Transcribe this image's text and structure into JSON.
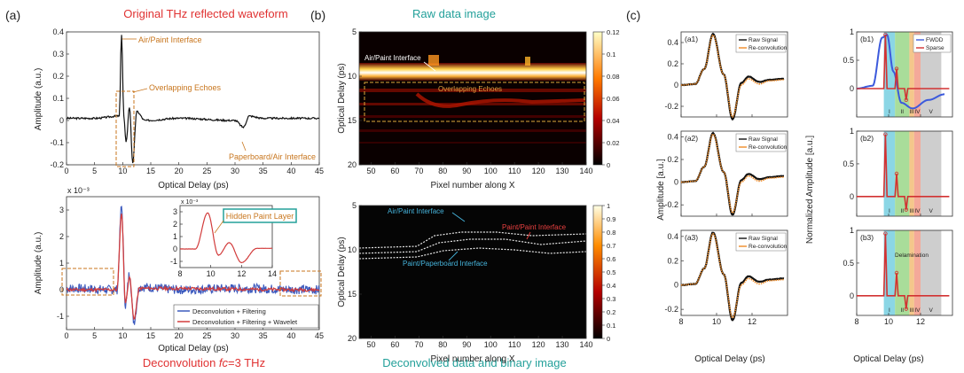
{
  "letters": {
    "a": "(a)",
    "b": "(b)",
    "c": "(c)"
  },
  "heads": {
    "a_top": "Original THz reflected waveform",
    "a_bottom_pre": "Deconvolution ",
    "a_bottom_fc": "fc",
    "a_bottom_post": "=3 THz",
    "b_top": "Raw data image",
    "b_bottom": "Deconvolved data and binary image"
  },
  "colors": {
    "red": "#e03232",
    "teal": "#23a09a",
    "orange": "#c8761e",
    "blue": "#3c5abe",
    "deconv_red": "#d23c3c",
    "raw_black": "#111111",
    "recon_orange": "#f08c28",
    "fwdd_blue": "#3c5adc"
  },
  "chart_data": [
    {
      "id": "a-top",
      "type": "line",
      "xlabel": "Optical Delay (ps)",
      "ylabel": "Amplitude (a.u.)",
      "xlim": [
        0,
        45
      ],
      "ylim": [
        -0.2,
        0.4
      ],
      "xticks": [
        0,
        5,
        10,
        15,
        20,
        25,
        30,
        35,
        40,
        45
      ],
      "yticks": [
        -0.2,
        -0.1,
        0,
        0.1,
        0.2,
        0.3,
        0.4
      ],
      "grid": false,
      "annotations": [
        "Air/Paint Interface",
        "Overlapping Echoes",
        "Paperboard/Air Interface"
      ],
      "series": [
        {
          "points": [
            [
              0,
              0.01
            ],
            [
              5,
              0.01
            ],
            [
              9.4,
              0.02
            ],
            [
              9.8,
              0.39
            ],
            [
              10.2,
              0.02
            ],
            [
              10.6,
              -0.1
            ],
            [
              11.2,
              0.06
            ],
            [
              11.8,
              -0.19
            ],
            [
              12.5,
              0.04
            ],
            [
              14,
              0.0
            ],
            [
              20,
              0.01
            ],
            [
              30,
              0.0
            ],
            [
              31.5,
              -0.03
            ],
            [
              32.5,
              0.02
            ],
            [
              35,
              0.01
            ],
            [
              45,
              0.01
            ]
          ]
        }
      ]
    },
    {
      "id": "a-bottom",
      "type": "line",
      "xlabel": "Optical Delay (ps)",
      "ylabel": "Amplitude (a.u.)",
      "xlim": [
        0,
        45
      ],
      "ylim": [
        -1.5,
        3.5
      ],
      "xticks": [
        0,
        5,
        10,
        15,
        20,
        25,
        30,
        35,
        40,
        45
      ],
      "yticks": [
        -1,
        0,
        1,
        2,
        3
      ],
      "exponent": "x 10⁻³",
      "annotations": [
        "Hidden Paint Layer"
      ],
      "legend": [
        "Deconvolution + Filtering",
        "Deconvolution + Filtering + Wavelet"
      ],
      "legend_placement": "bottom-right",
      "series": [
        {
          "name": "Deconvolution + Filtering",
          "points": [
            [
              0,
              0.05
            ],
            [
              9,
              0.0
            ],
            [
              9.8,
              3.1
            ],
            [
              10.5,
              -0.6
            ],
            [
              11.2,
              0.6
            ],
            [
              12,
              -1.2
            ],
            [
              13,
              0.1
            ],
            [
              20,
              0.0
            ],
            [
              30,
              0.05
            ],
            [
              45,
              0.0
            ]
          ]
        },
        {
          "name": "Deconvolution + Filtering + Wavelet",
          "points": [
            [
              0,
              0.0
            ],
            [
              9,
              0.0
            ],
            [
              9.8,
              2.9
            ],
            [
              10.5,
              -0.5
            ],
            [
              11.2,
              0.5
            ],
            [
              12,
              -1.1
            ],
            [
              13,
              0.05
            ],
            [
              45,
              0.0
            ]
          ]
        }
      ],
      "inset": {
        "xlim": [
          8,
          14
        ],
        "xticks": [
          8,
          10,
          12,
          14
        ],
        "yticks": [
          -1,
          0,
          1,
          2,
          3
        ],
        "exponent": "x 10⁻³"
      }
    },
    {
      "id": "b-top",
      "type": "heatmap",
      "xlabel": "Pixel number along X",
      "ylabel": "Optical Delay (ps)",
      "xlim": [
        45,
        140
      ],
      "ylim": [
        20,
        5
      ],
      "xticks": [
        50,
        60,
        70,
        80,
        90,
        100,
        110,
        120,
        130,
        140
      ],
      "yticks": [
        5,
        10,
        15,
        20
      ],
      "colorbar": [
        0,
        0.02,
        0.04,
        0.06,
        0.08,
        0.1,
        0.12
      ],
      "annotations": [
        "Air/Paint Interface",
        "Overlapping Echoes"
      ]
    },
    {
      "id": "b-bottom",
      "type": "heatmap",
      "xlabel": "Pixel number along X",
      "ylabel": "Optical Delay (ps)",
      "xlim": [
        45,
        140
      ],
      "ylim": [
        20,
        5
      ],
      "xticks": [
        50,
        60,
        70,
        80,
        90,
        100,
        110,
        120,
        130,
        140
      ],
      "yticks": [
        5,
        10,
        15,
        20
      ],
      "colorbar": [
        0,
        0.1,
        0.2,
        0.3,
        0.4,
        0.5,
        0.6,
        0.7,
        0.8,
        0.9,
        1
      ],
      "annotations": [
        "Air/Paint Interface",
        "Paint/Paint Interface",
        "Paint/Paperboard Interface"
      ]
    },
    {
      "id": "c-left",
      "type": "line",
      "xlabel": "Optical Delay (ps)",
      "ylabel": "Amplitude [a.u.]",
      "xlim": [
        8,
        14
      ],
      "xticks": [
        8,
        10,
        12
      ],
      "panels": [
        {
          "label": "(a1)",
          "ylim": [
            -0.3,
            0.5
          ],
          "yticks": [
            -0.2,
            0,
            0.2,
            0.4
          ]
        },
        {
          "label": "(a2)",
          "ylim": [
            -0.3,
            0.45
          ],
          "yticks": [
            -0.2,
            0,
            0.2,
            0.4
          ]
        },
        {
          "label": "(a3)",
          "ylim": [
            -0.25,
            0.45
          ],
          "yticks": [
            -0.2,
            0,
            0.2,
            0.4
          ]
        }
      ],
      "legend": [
        "Raw Signal",
        "Re-convolution"
      ],
      "legend_placement": "top-right",
      "series": [
        {
          "name": "Raw Signal",
          "points": [
            [
              8,
              0.0
            ],
            [
              8.8,
              0.01
            ],
            [
              9.3,
              0.15
            ],
            [
              9.8,
              0.48
            ],
            [
              10.4,
              0.1
            ],
            [
              10.9,
              -0.32
            ],
            [
              11.4,
              0.02
            ],
            [
              11.8,
              0.08
            ],
            [
              12.4,
              0.03
            ],
            [
              13,
              0.05
            ],
            [
              13.8,
              0.06
            ]
          ]
        },
        {
          "name": "Re-convolution",
          "points": [
            [
              8,
              0.0
            ],
            [
              8.8,
              0.01
            ],
            [
              9.3,
              0.15
            ],
            [
              9.8,
              0.47
            ],
            [
              10.4,
              0.1
            ],
            [
              10.9,
              -0.3
            ],
            [
              11.4,
              0.0
            ],
            [
              11.8,
              0.06
            ],
            [
              12.4,
              0.01
            ],
            [
              13,
              0.04
            ],
            [
              13.8,
              0.05
            ]
          ]
        }
      ]
    },
    {
      "id": "c-right",
      "type": "line",
      "xlabel": "Optical Delay (ps)",
      "ylabel": "Normalized Amplitude [a.u.]",
      "xlim": [
        8,
        14
      ],
      "xticks": [
        8,
        10,
        12
      ],
      "panels": [
        {
          "label": "(b1)",
          "ylim": [
            -0.5,
            1
          ],
          "yticks": [
            0,
            0.5,
            1
          ]
        },
        {
          "label": "(b2)",
          "ylim": [
            -0.3,
            1
          ],
          "yticks": [
            0,
            0.5,
            1
          ]
        },
        {
          "label": "(b3)",
          "ylim": [
            -0.3,
            1
          ],
          "yticks": [
            0,
            0.5,
            1
          ]
        }
      ],
      "regions": [
        "I",
        "II",
        "III",
        "IV",
        "V"
      ],
      "region_colors": [
        "#64c8dc",
        "#8cd278",
        "#f0b464",
        "#f08c78",
        "#bebebe"
      ],
      "annotations": [
        "Delamination"
      ],
      "legend": [
        "FWDD",
        "Sparse"
      ],
      "legend_placement": "top-right",
      "series": [
        {
          "name": "FWDD",
          "points": [
            [
              8,
              0.0
            ],
            [
              9,
              0.05
            ],
            [
              9.6,
              0.9
            ],
            [
              9.9,
              0.95
            ],
            [
              10.3,
              0.3
            ],
            [
              10.8,
              -0.25
            ],
            [
              11.5,
              -0.35
            ],
            [
              12.5,
              -0.2
            ],
            [
              13.5,
              -0.1
            ]
          ]
        },
        {
          "name": "Sparse",
          "points": [
            [
              8,
              0.0
            ],
            [
              9.7,
              0.0
            ],
            [
              9.8,
              0.95
            ],
            [
              9.9,
              0.0
            ],
            [
              10.4,
              0.0
            ],
            [
              10.5,
              0.35
            ],
            [
              10.6,
              0.0
            ],
            [
              11,
              0.0
            ],
            [
              11.1,
              -0.2
            ],
            [
              11.2,
              0.0
            ],
            [
              13.8,
              0.0
            ]
          ]
        }
      ]
    }
  ]
}
